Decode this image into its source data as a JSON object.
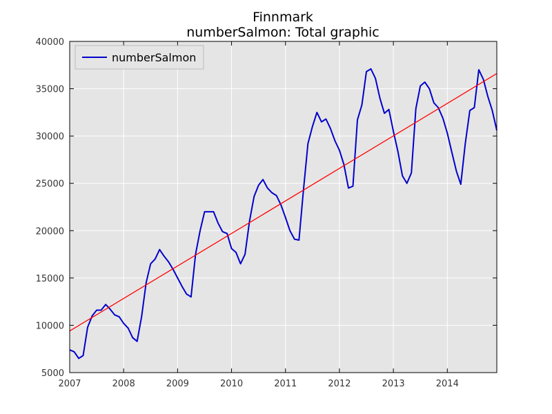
{
  "chart_data": {
    "type": "line",
    "title": "Finnmark",
    "subtitle": "numberSalmon: Total graphic",
    "xlabel": "",
    "ylabel": "",
    "xlim": [
      2007.0,
      2014.917
    ],
    "ylim": [
      5000,
      40000
    ],
    "x_ticks": [
      2007,
      2008,
      2009,
      2010,
      2011,
      2012,
      2013,
      2014
    ],
    "y_ticks": [
      5000,
      10000,
      15000,
      20000,
      25000,
      30000,
      35000,
      40000
    ],
    "grid": true,
    "legend_position": "upper-left",
    "background": "#e5e5e5",
    "series": [
      {
        "name": "numberSalmon",
        "color": "#0000cc",
        "x": [
          2007.0,
          2007.083,
          2007.167,
          2007.25,
          2007.333,
          2007.417,
          2007.5,
          2007.583,
          2007.667,
          2007.75,
          2007.833,
          2007.917,
          2008.0,
          2008.083,
          2008.167,
          2008.25,
          2008.333,
          2008.417,
          2008.5,
          2008.583,
          2008.667,
          2008.75,
          2008.833,
          2008.917,
          2009.0,
          2009.083,
          2009.167,
          2009.25,
          2009.333,
          2009.417,
          2009.5,
          2009.583,
          2009.667,
          2009.75,
          2009.833,
          2009.917,
          2010.0,
          2010.083,
          2010.167,
          2010.25,
          2010.333,
          2010.417,
          2010.5,
          2010.583,
          2010.667,
          2010.75,
          2010.833,
          2010.917,
          2011.0,
          2011.083,
          2011.167,
          2011.25,
          2011.333,
          2011.417,
          2011.5,
          2011.583,
          2011.667,
          2011.75,
          2011.833,
          2011.917,
          2012.0,
          2012.083,
          2012.167,
          2012.25,
          2012.333,
          2012.417,
          2012.5,
          2012.583,
          2012.667,
          2012.75,
          2012.833,
          2012.917,
          2013.0,
          2013.083,
          2013.167,
          2013.25,
          2013.333,
          2013.417,
          2013.5,
          2013.583,
          2013.667,
          2013.75,
          2013.833,
          2013.917,
          2014.0,
          2014.083,
          2014.167,
          2014.25,
          2014.333,
          2014.417,
          2014.5,
          2014.583,
          2014.667,
          2014.75,
          2014.833,
          2014.917
        ],
        "values": [
          7400,
          7200,
          6500,
          6800,
          9800,
          11000,
          11600,
          11600,
          12200,
          11700,
          11100,
          10900,
          10200,
          9700,
          8700,
          8300,
          10900,
          14500,
          16500,
          17000,
          18000,
          17300,
          16700,
          15900,
          15000,
          14100,
          13300,
          13000,
          17500,
          20000,
          22000,
          22000,
          22000,
          20800,
          19900,
          19700,
          18100,
          17700,
          16500,
          17500,
          21000,
          23600,
          24800,
          25400,
          24500,
          24000,
          23700,
          22700,
          21400,
          20000,
          19100,
          19000,
          24300,
          29200,
          31000,
          32500,
          31500,
          31800,
          30800,
          29500,
          28500,
          27000,
          24500,
          24700,
          31700,
          33300,
          36800,
          37100,
          36100,
          34000,
          32400,
          32800,
          30500,
          28400,
          25800,
          25000,
          26100,
          32900,
          35300,
          35700,
          35000,
          33500,
          33000,
          31900,
          30300,
          28300,
          26300,
          24900,
          29200,
          32700,
          33000,
          37000,
          36000,
          34200,
          32700,
          30600
        ]
      },
      {
        "name": "",
        "color": "#ff0000",
        "x": [
          2007.0,
          2014.917
        ],
        "values": [
          9400,
          36600
        ]
      }
    ]
  }
}
